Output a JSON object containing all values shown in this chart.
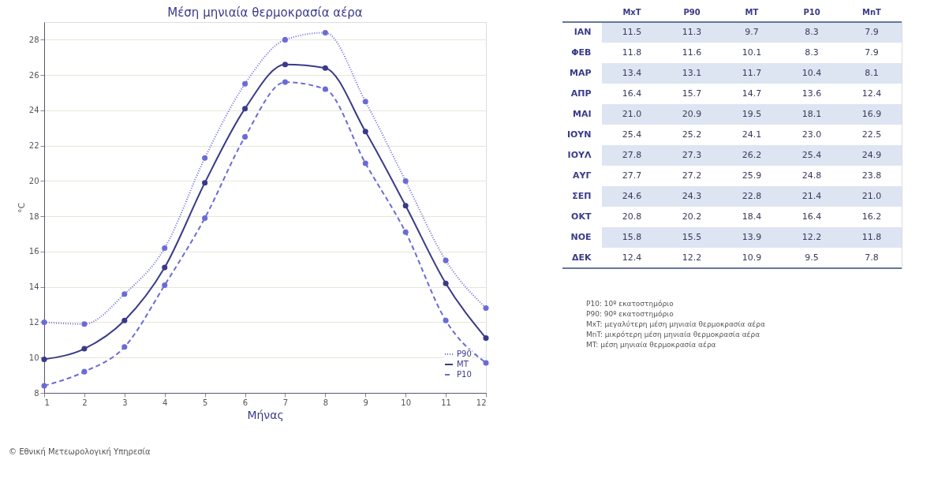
{
  "chart_data": [
    {
      "type": "line",
      "title": "Μέση μηνιαία θερμοκρασία αέρα",
      "xlabel": "Μήνας",
      "ylabel": "°C",
      "x": [
        1,
        2,
        3,
        4,
        5,
        6,
        7,
        8,
        9,
        10,
        11,
        12
      ],
      "series": [
        {
          "name": "P90",
          "color": "#6b6bd6",
          "line_style": "dotted",
          "values": [
            12.0,
            11.9,
            13.6,
            16.2,
            21.3,
            25.5,
            28.0,
            28.4,
            24.5,
            20.0,
            15.5,
            12.8
          ]
        },
        {
          "name": "MT",
          "color": "#3a3a8a",
          "line_style": "solid",
          "values": [
            9.9,
            10.5,
            12.1,
            15.1,
            19.9,
            24.1,
            26.6,
            26.4,
            22.8,
            18.6,
            14.2,
            11.1
          ]
        },
        {
          "name": "P10",
          "color": "#6b6bd6",
          "line_style": "dashed",
          "values": [
            8.4,
            9.2,
            10.6,
            14.1,
            17.9,
            22.5,
            25.6,
            25.2,
            21.0,
            17.1,
            12.1,
            9.7
          ]
        }
      ],
      "xlim": [
        1,
        12
      ],
      "xticks": [
        1,
        2,
        3,
        4,
        5,
        6,
        7,
        8,
        9,
        10,
        11,
        12
      ],
      "ylim": [
        8,
        29
      ],
      "yticks": [
        8,
        10,
        12,
        14,
        16,
        18,
        20,
        22,
        24,
        26,
        28
      ],
      "grid": "y",
      "legend": "bottom right",
      "marker": "circle",
      "annotations": [
        "© Εθνική Μετεωρολογική Υπηρεσία"
      ]
    },
    {
      "type": "heatmap",
      "categories": [
        "MxT",
        "P90",
        "MT",
        "P10",
        "MnT"
      ],
      "y_categories": [
        "ΙΑΝ",
        "ΦΕΒ",
        "ΜΑΡ",
        "ΑΠΡ",
        "ΜΑΙ",
        "ΙΟΥΝ",
        "ΙΟΥΛ",
        "ΑΥΓ",
        "ΣΕΠ",
        "ΟΚΤ",
        "ΝΟΕ",
        "ΔΕΚ"
      ],
      "cells": [
        [
          11.5,
          11.3,
          9.7,
          8.3,
          7.9
        ],
        [
          11.8,
          11.6,
          10.1,
          8.3,
          7.9
        ],
        [
          13.4,
          13.1,
          11.7,
          10.4,
          8.1
        ],
        [
          16.4,
          15.7,
          14.7,
          13.6,
          12.4
        ],
        [
          21.0,
          20.9,
          19.5,
          18.1,
          16.9
        ],
        [
          25.4,
          25.2,
          24.1,
          23.0,
          22.5
        ],
        [
          27.8,
          27.3,
          26.2,
          25.4,
          24.9
        ],
        [
          27.7,
          27.2,
          25.9,
          24.8,
          23.8
        ],
        [
          24.6,
          24.3,
          22.8,
          21.4,
          21.0
        ],
        [
          20.8,
          20.2,
          18.4,
          16.4,
          16.2
        ],
        [
          15.8,
          15.5,
          13.9,
          12.2,
          11.8
        ],
        [
          12.4,
          12.2,
          10.9,
          9.5,
          7.8
        ]
      ],
      "cell_labels": [
        [
          "11.5",
          "11.3",
          "9.7",
          "8.3",
          "7.9"
        ],
        [
          "11.8",
          "11.6",
          "10.1",
          "8.3",
          "7.9"
        ],
        [
          "13.4",
          "13.1",
          "11.7",
          "10.4",
          "8.1"
        ],
        [
          "16.4",
          "15.7",
          "14.7",
          "13.6",
          "12.4"
        ],
        [
          "21.0",
          "20.9",
          "19.5",
          "18.1",
          "16.9"
        ],
        [
          "25.4",
          "25.2",
          "24.1",
          "23.0",
          "22.5"
        ],
        [
          "27.8",
          "27.3",
          "26.2",
          "25.4",
          "24.9"
        ],
        [
          "27.7",
          "27.2",
          "25.9",
          "24.8",
          "23.8"
        ],
        [
          "24.6",
          "24.3",
          "22.8",
          "21.4",
          "21.0"
        ],
        [
          "20.8",
          "20.2",
          "18.4",
          "16.4",
          "16.2"
        ],
        [
          "15.8",
          "15.5",
          "13.9",
          "12.2",
          "11.8"
        ],
        [
          "12.4",
          "12.2",
          "10.9",
          "9.5",
          "7.8"
        ]
      ],
      "annotations": [
        "P10: 10º εκατοστημόριο",
        "P90: 90º εκατοστημόριο",
        "MxT: μεγαλύτερη μέση μηνιαία θερμοκρασία αέρα",
        "MnT: μικρότερη μέση μηνιαία θερμοκρασία αέρα",
        "MT: μέση μηνιαία θερμοκρασία αέρα"
      ]
    }
  ]
}
